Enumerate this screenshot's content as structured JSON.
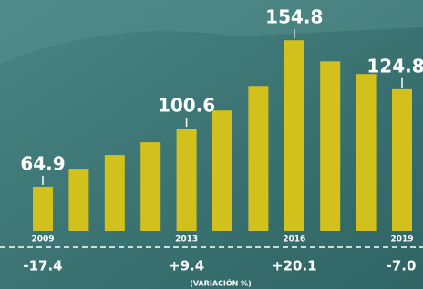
{
  "chart_data": {
    "type": "bar",
    "categories": [
      "2009",
      null,
      null,
      null,
      "2013",
      null,
      null,
      "2016",
      null,
      null,
      "2019"
    ],
    "values": [
      64.9,
      76,
      84.4,
      92.2,
      100.6,
      111.7,
      126.8,
      154.8,
      141.9,
      134.1,
      124.8
    ],
    "show_value_label": [
      true,
      false,
      false,
      false,
      true,
      false,
      false,
      true,
      false,
      false,
      true
    ],
    "color": "#d2c11c",
    "ylim": [
      38,
      165
    ],
    "variation": {
      "label": "(VARIACIÓN %)",
      "values": [
        -17.4,
        null,
        null,
        null,
        9.4,
        null,
        null,
        20.1,
        null,
        null,
        -7.0
      ],
      "value_labels": [
        "-17.4",
        null,
        null,
        null,
        "+9.4",
        null,
        null,
        "+20.1",
        null,
        null,
        "-7.0"
      ]
    }
  }
}
